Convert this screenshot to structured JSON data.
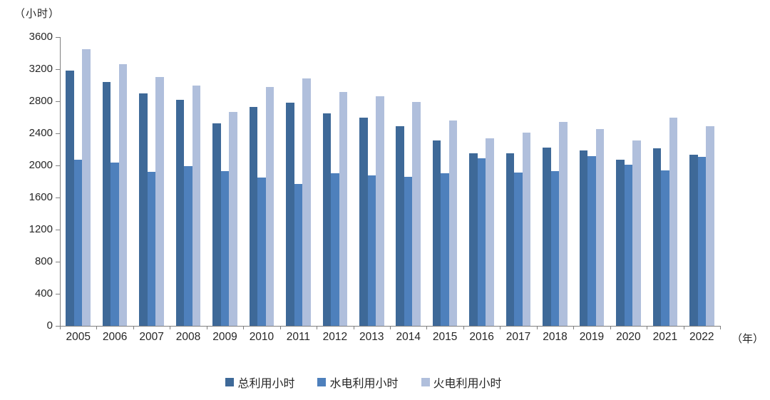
{
  "y_unit_label": "（小时）",
  "x_unit_label": "（年）",
  "colors": {
    "axis": "#808080",
    "text": "#262626",
    "series_total": "#3E6998",
    "series_hydro": "#4E80BC",
    "series_thermal": "#B0BFDC"
  },
  "chart_data": {
    "type": "bar",
    "title": "",
    "y_unit_label": "（小时）",
    "x_unit_label": "（年）",
    "categories": [
      "2005",
      "2006",
      "2007",
      "2008",
      "2009",
      "2010",
      "2011",
      "2012",
      "2013",
      "2014",
      "2015",
      "2016",
      "2017",
      "2018",
      "2019",
      "2020",
      "2021",
      "2022"
    ],
    "series": [
      {
        "name": "总利用小时",
        "color": "#3E6998",
        "values": [
          3185,
          3040,
          2900,
          2820,
          2525,
          2725,
          2785,
          2650,
          2595,
          2485,
          2310,
          2150,
          2150,
          2225,
          2190,
          2070,
          2210,
          2135
        ]
      },
      {
        "name": "水电利用小时",
        "color": "#4E80BC",
        "values": [
          2075,
          2035,
          1920,
          1990,
          1930,
          1850,
          1765,
          1900,
          1875,
          1855,
          1905,
          2085,
          1915,
          1930,
          2120,
          2010,
          1935,
          2105
        ]
      },
      {
        "name": "火电利用小时",
        "color": "#B0BFDC",
        "values": [
          3445,
          3260,
          3100,
          3000,
          2670,
          2980,
          3085,
          2915,
          2865,
          2795,
          2560,
          2340,
          2405,
          2540,
          2450,
          2315,
          2600,
          2485
        ]
      }
    ],
    "ylim": [
      0,
      3600
    ],
    "ytick_step": 400,
    "yticks": [
      0,
      400,
      800,
      1200,
      1600,
      2000,
      2400,
      2800,
      3200,
      3600
    ],
    "grid": false,
    "legend_position": "bottom"
  }
}
